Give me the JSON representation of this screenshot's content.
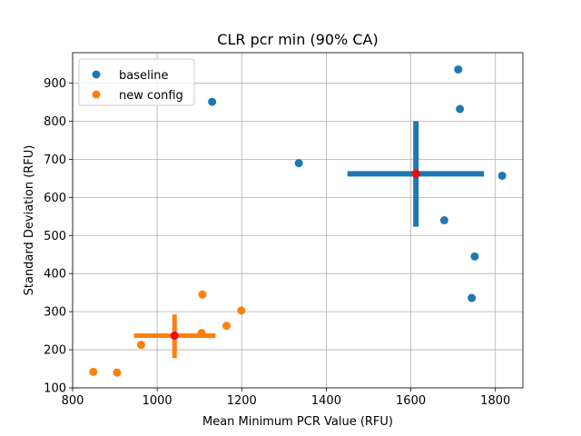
{
  "chart_data": {
    "type": "scatter",
    "title": "CLR pcr min (90% CA)",
    "xlabel": "Mean Minimum PCR Value (RFU)",
    "ylabel": "Standard Deviation (RFU)",
    "xlim": [
      800,
      1865
    ],
    "ylim": [
      100,
      980
    ],
    "xticks": [
      800,
      1000,
      1200,
      1400,
      1600,
      1800
    ],
    "yticks": [
      100,
      200,
      300,
      400,
      500,
      600,
      700,
      800,
      900
    ],
    "grid": true,
    "legend_position": "upper-left",
    "series": [
      {
        "name": "baseline",
        "color": "#1f77b4",
        "points": [
          {
            "x": 1130,
            "y": 851
          },
          {
            "x": 1335,
            "y": 690
          },
          {
            "x": 1712,
            "y": 936
          },
          {
            "x": 1716,
            "y": 832
          },
          {
            "x": 1816,
            "y": 657
          },
          {
            "x": 1679,
            "y": 540
          },
          {
            "x": 1751,
            "y": 445
          },
          {
            "x": 1744,
            "y": 336
          }
        ],
        "center": {
          "x": 1612,
          "y": 662
        },
        "x_interval": [
          1450,
          1773
        ],
        "y_interval": [
          523,
          800
        ]
      },
      {
        "name": "new config",
        "color": "#ff7f0e",
        "points": [
          {
            "x": 849,
            "y": 142
          },
          {
            "x": 905,
            "y": 140
          },
          {
            "x": 962,
            "y": 213
          },
          {
            "x": 1107,
            "y": 345
          },
          {
            "x": 1105,
            "y": 244
          },
          {
            "x": 1164,
            "y": 263
          },
          {
            "x": 1199,
            "y": 303
          }
        ],
        "center": {
          "x": 1041,
          "y": 237
        },
        "x_interval": [
          945,
          1138
        ],
        "y_interval": [
          178,
          293
        ]
      }
    ],
    "center_marker_color": "#ff0000"
  }
}
